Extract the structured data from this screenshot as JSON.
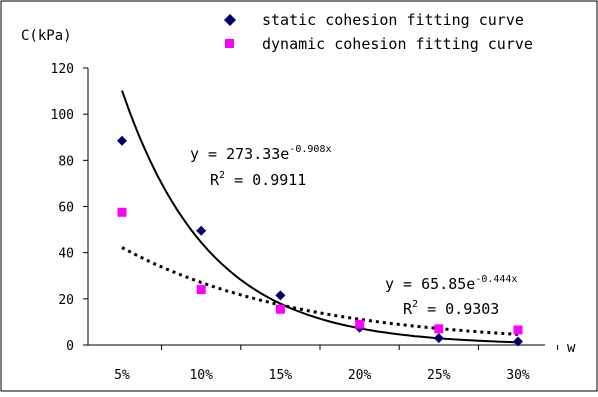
{
  "chart_data": {
    "type": "scatter",
    "x": [
      "5%",
      "10%",
      "15%",
      "20%",
      "25%",
      "30%"
    ],
    "ylabel": "C(kPa)",
    "xlabel": "w",
    "ylim": [
      0,
      120
    ],
    "yticks": [
      0,
      20,
      40,
      60,
      80,
      100,
      120
    ],
    "grid": false,
    "legend_position": "top",
    "series": [
      {
        "name": "static cohesion fitting curve",
        "marker": "diamond",
        "color": "#000066",
        "values": [
          88.5,
          49.5,
          21.5,
          7.5,
          3,
          1.5
        ],
        "fit": {
          "style": "solid",
          "coef": 273.33,
          "exp": -0.908,
          "eq_base": "y = 273.33e",
          "eq_exp": "-0.908x",
          "r2_label": "R",
          "r2_sup": "2",
          "r2_value": " = 0.9911"
        }
      },
      {
        "name": "dynamic cohesion fitting curve",
        "marker": "square",
        "color": "#ff00ff",
        "values": [
          57.5,
          24,
          15.5,
          9,
          7,
          6.5
        ],
        "fit": {
          "style": "dotted",
          "coef": 65.85,
          "exp": -0.444,
          "eq_base": "y = 65.85e",
          "eq_exp": "-0.444x",
          "r2_label": "R",
          "r2_sup": "2",
          "r2_value": " = 0.9303"
        }
      }
    ]
  }
}
